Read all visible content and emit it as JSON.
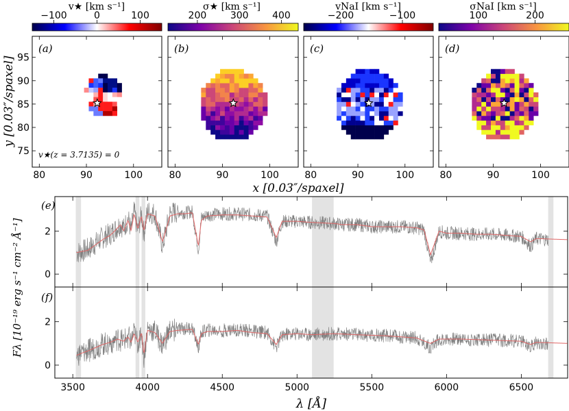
{
  "chart_data": [
    {
      "type": "heatmap",
      "panel_label": "(a)",
      "colorbar_label": "v★ [km s⁻¹]",
      "colorbar_ticks": [
        "−100",
        "0",
        "100"
      ],
      "colorbar_tick_values": [
        -100,
        0,
        100
      ],
      "colorbar_range": [
        -150,
        150
      ],
      "colormap": "seismic",
      "xlim": [
        78.5,
        106
      ],
      "ylim": [
        71.5,
        99.5
      ],
      "xticks": [
        "80",
        "90",
        "100"
      ],
      "xtick_values": [
        80,
        90,
        100
      ],
      "yticks": [
        "75",
        "80",
        "85",
        "90",
        "95"
      ],
      "ytick_values": [
        75,
        80,
        85,
        90,
        95
      ],
      "annotation": "v★(z = 3.7135) = 0",
      "center_marker": [
        92.3,
        85.2
      ],
      "map_rows_top_to_bottom": [
        ".......BB.......",
        ".....RXSNNN.....",
        ".....bXbBNNB....",
        "....QLMRBNbB....",
        "......PRO*PQ....",
        ".....WKROWWW....",
        ".....RPRRRKW....",
        ".....SSRRRT.....",
        "......SSTTR....."
      ],
      "map_x_start": 90,
      "map_y_top": 91
    },
    {
      "type": "heatmap",
      "panel_label": "(b)",
      "colorbar_label": "σ★ [km s⁻¹]",
      "colorbar_ticks": [
        "200",
        "300",
        "400"
      ],
      "colorbar_tick_values": [
        200,
        300,
        400
      ],
      "colorbar_range": [
        130,
        440
      ],
      "colormap": "plasma",
      "xlim": [
        78.5,
        106
      ],
      "ylim": [
        71.5,
        99.5
      ],
      "xticks": [
        "80",
        "90",
        "100"
      ],
      "xtick_values": [
        80,
        90,
        100
      ],
      "yticks": [
        "75",
        "80",
        "85",
        "90",
        "95"
      ],
      "ytick_values": [
        75,
        80,
        85,
        90,
        95
      ],
      "center_marker": [
        92.3,
        85.2
      ]
    },
    {
      "type": "heatmap",
      "panel_label": "(c)",
      "colorbar_label": "vNaI [km s⁻¹]",
      "colorbar_ticks": [
        "−200",
        "−100"
      ],
      "colorbar_tick_values": [
        -200,
        -100
      ],
      "colorbar_range": [
        -260,
        -50
      ],
      "colormap": "seismic",
      "xlim": [
        78.5,
        106
      ],
      "ylim": [
        71.5,
        99.5
      ],
      "xticks": [
        "80",
        "90",
        "100"
      ],
      "xtick_values": [
        80,
        90,
        100
      ],
      "yticks": [
        "75",
        "80",
        "85",
        "90",
        "95"
      ],
      "ytick_values": [
        75,
        80,
        85,
        90,
        95
      ],
      "center_marker": [
        92.3,
        85.2
      ]
    },
    {
      "type": "heatmap",
      "panel_label": "(d)",
      "colorbar_label": "σNaI [km s⁻¹]",
      "colorbar_ticks": [
        "100",
        "200"
      ],
      "colorbar_tick_values": [
        100,
        200
      ],
      "colorbar_range": [
        30,
        260
      ],
      "colormap": "plasma",
      "xlim": [
        78.5,
        106
      ],
      "ylim": [
        71.5,
        99.5
      ],
      "xticks": [
        "80",
        "90",
        "100"
      ],
      "xtick_values": [
        80,
        90,
        100
      ],
      "yticks": [
        "75",
        "80",
        "85",
        "90",
        "95"
      ],
      "ytick_values": [
        75,
        80,
        85,
        90,
        95
      ],
      "center_marker": [
        92.3,
        85.2
      ]
    },
    {
      "type": "line",
      "panel_label": "(e)",
      "xlim": [
        3380,
        6810
      ],
      "ylim": [
        -0.6,
        3.6
      ],
      "yticks": [
        "0",
        "2"
      ],
      "ytick_values": [
        0,
        2
      ],
      "masked_regions": [
        [
          3520,
          3555
        ],
        [
          3920,
          3945
        ],
        [
          3960,
          3985
        ],
        [
          5100,
          5245
        ],
        [
          6680,
          6715
        ]
      ],
      "series": [
        {
          "role": "observed",
          "color": "#808080",
          "x": [
            3525,
            3560,
            3600,
            3640,
            3700,
            3750,
            3780,
            3820,
            3840,
            3870,
            3890,
            3910,
            3935,
            3960,
            3975,
            4000,
            4050,
            4100,
            4150,
            4200,
            4250,
            4300,
            4340,
            4360,
            4400,
            4500,
            4600,
            4700,
            4800,
            4861,
            4900,
            5000,
            5100,
            5250,
            5300,
            5400,
            5500,
            5600,
            5700,
            5800,
            5850,
            5893,
            5950,
            6000,
            6100,
            6200,
            6300,
            6400,
            6500,
            6563,
            6600,
            6680
          ],
          "y": [
            1.0,
            1.05,
            1.15,
            1.35,
            1.7,
            1.85,
            2.05,
            2.35,
            2.1,
            2.6,
            2.0,
            2.9,
            2.0,
            2.8,
            1.9,
            2.9,
            2.8,
            1.3,
            2.8,
            2.9,
            2.85,
            2.9,
            1.1,
            2.6,
            2.75,
            2.8,
            2.8,
            2.75,
            2.7,
            1.5,
            2.45,
            2.45,
            2.4,
            2.35,
            2.3,
            2.3,
            2.2,
            2.2,
            2.2,
            2.15,
            2.05,
            0.5,
            2.0,
            1.9,
            1.9,
            1.85,
            1.85,
            1.8,
            1.75,
            1.3,
            1.65,
            1.6
          ]
        },
        {
          "role": "model",
          "color": "#e06666",
          "x": [
            3525,
            3560,
            3600,
            3640,
            3700,
            3750,
            3780,
            3820,
            3840,
            3870,
            3890,
            3910,
            3935,
            3960,
            3975,
            4000,
            4050,
            4100,
            4150,
            4200,
            4250,
            4300,
            4340,
            4360,
            4400,
            4500,
            4600,
            4700,
            4800,
            4861,
            4900,
            5000,
            5100,
            5250,
            5300,
            5400,
            5500,
            5600,
            5700,
            5800,
            5850,
            5893,
            5950,
            6000,
            6100,
            6200,
            6300,
            6400,
            6500,
            6563,
            6600,
            6810
          ],
          "y": [
            1.0,
            1.05,
            1.1,
            1.3,
            1.6,
            1.8,
            2.0,
            2.3,
            2.0,
            2.5,
            2.0,
            2.8,
            2.1,
            2.7,
            2.0,
            2.8,
            2.7,
            1.5,
            2.7,
            2.8,
            2.8,
            2.85,
            1.3,
            2.5,
            2.7,
            2.75,
            2.75,
            2.7,
            2.65,
            1.7,
            2.45,
            2.45,
            2.4,
            2.35,
            2.3,
            2.3,
            2.2,
            2.2,
            2.2,
            2.15,
            2.05,
            0.9,
            2.0,
            1.9,
            1.9,
            1.85,
            1.85,
            1.8,
            1.75,
            1.5,
            1.65,
            1.6
          ]
        }
      ]
    },
    {
      "type": "line",
      "panel_label": "(f)",
      "xlim": [
        3380,
        6810
      ],
      "ylim": [
        -0.6,
        3.6
      ],
      "yticks": [
        "0",
        "2"
      ],
      "ytick_values": [
        0,
        2
      ],
      "xticks": [
        "3500",
        "4000",
        "4500",
        "5000",
        "5500",
        "6000",
        "6500"
      ],
      "xtick_values": [
        3500,
        4000,
        4500,
        5000,
        5500,
        6000,
        6500
      ],
      "xlabel": "λ [Å]",
      "ylabel": "Fλ [10⁻¹⁹ erg s⁻¹ cm⁻² Å⁻¹]",
      "masked_regions": [
        [
          3520,
          3555
        ],
        [
          3920,
          3945
        ],
        [
          3960,
          3985
        ],
        [
          5100,
          5245
        ],
        [
          6680,
          6715
        ]
      ],
      "series": [
        {
          "role": "observed",
          "color": "#808080",
          "x": [
            3525,
            3560,
            3600,
            3650,
            3700,
            3750,
            3800,
            3840,
            3870,
            3890,
            3910,
            3935,
            3960,
            3975,
            4000,
            4050,
            4100,
            4150,
            4200,
            4300,
            4340,
            4360,
            4400,
            4500,
            4600,
            4700,
            4800,
            4861,
            4900,
            5000,
            5100,
            5250,
            5400,
            5600,
            5800,
            5893,
            5950,
            6100,
            6300,
            6500,
            6563,
            6600,
            6680
          ],
          "y": [
            0.45,
            0.55,
            0.65,
            0.8,
            0.95,
            1.05,
            1.2,
            1.1,
            1.35,
            1.05,
            1.5,
            1.0,
            1.55,
            0.3,
            1.65,
            1.55,
            0.9,
            1.6,
            1.65,
            1.7,
            0.8,
            1.5,
            1.6,
            1.6,
            1.65,
            1.55,
            1.5,
            0.8,
            1.4,
            1.45,
            1.4,
            1.45,
            1.4,
            1.35,
            1.25,
            0.8,
            1.2,
            1.2,
            1.15,
            1.1,
            0.85,
            1.05,
            1.0
          ]
        },
        {
          "role": "model",
          "color": "#e06666",
          "x": [
            3525,
            3560,
            3600,
            3650,
            3700,
            3750,
            3800,
            3840,
            3870,
            3890,
            3910,
            3935,
            3960,
            3975,
            4000,
            4050,
            4100,
            4150,
            4200,
            4300,
            4340,
            4360,
            4400,
            4500,
            4600,
            4700,
            4800,
            4861,
            4900,
            5000,
            5100,
            5250,
            5400,
            5600,
            5800,
            5893,
            5950,
            6100,
            6300,
            6500,
            6563,
            6600,
            6810
          ],
          "y": [
            0.45,
            0.55,
            0.65,
            0.8,
            0.95,
            1.05,
            1.2,
            1.1,
            1.3,
            1.05,
            1.45,
            1.05,
            1.5,
            0.5,
            1.6,
            1.5,
            1.0,
            1.55,
            1.6,
            1.65,
            0.95,
            1.45,
            1.55,
            1.55,
            1.6,
            1.5,
            1.45,
            0.95,
            1.4,
            1.45,
            1.4,
            1.45,
            1.4,
            1.35,
            1.25,
            1.0,
            1.2,
            1.2,
            1.15,
            1.1,
            0.95,
            1.05,
            1.0
          ]
        }
      ]
    }
  ],
  "map_shared": {
    "xlabel": "x [0.03″/spaxel]",
    "ylabel": "y [0.03″/spaxel]"
  }
}
